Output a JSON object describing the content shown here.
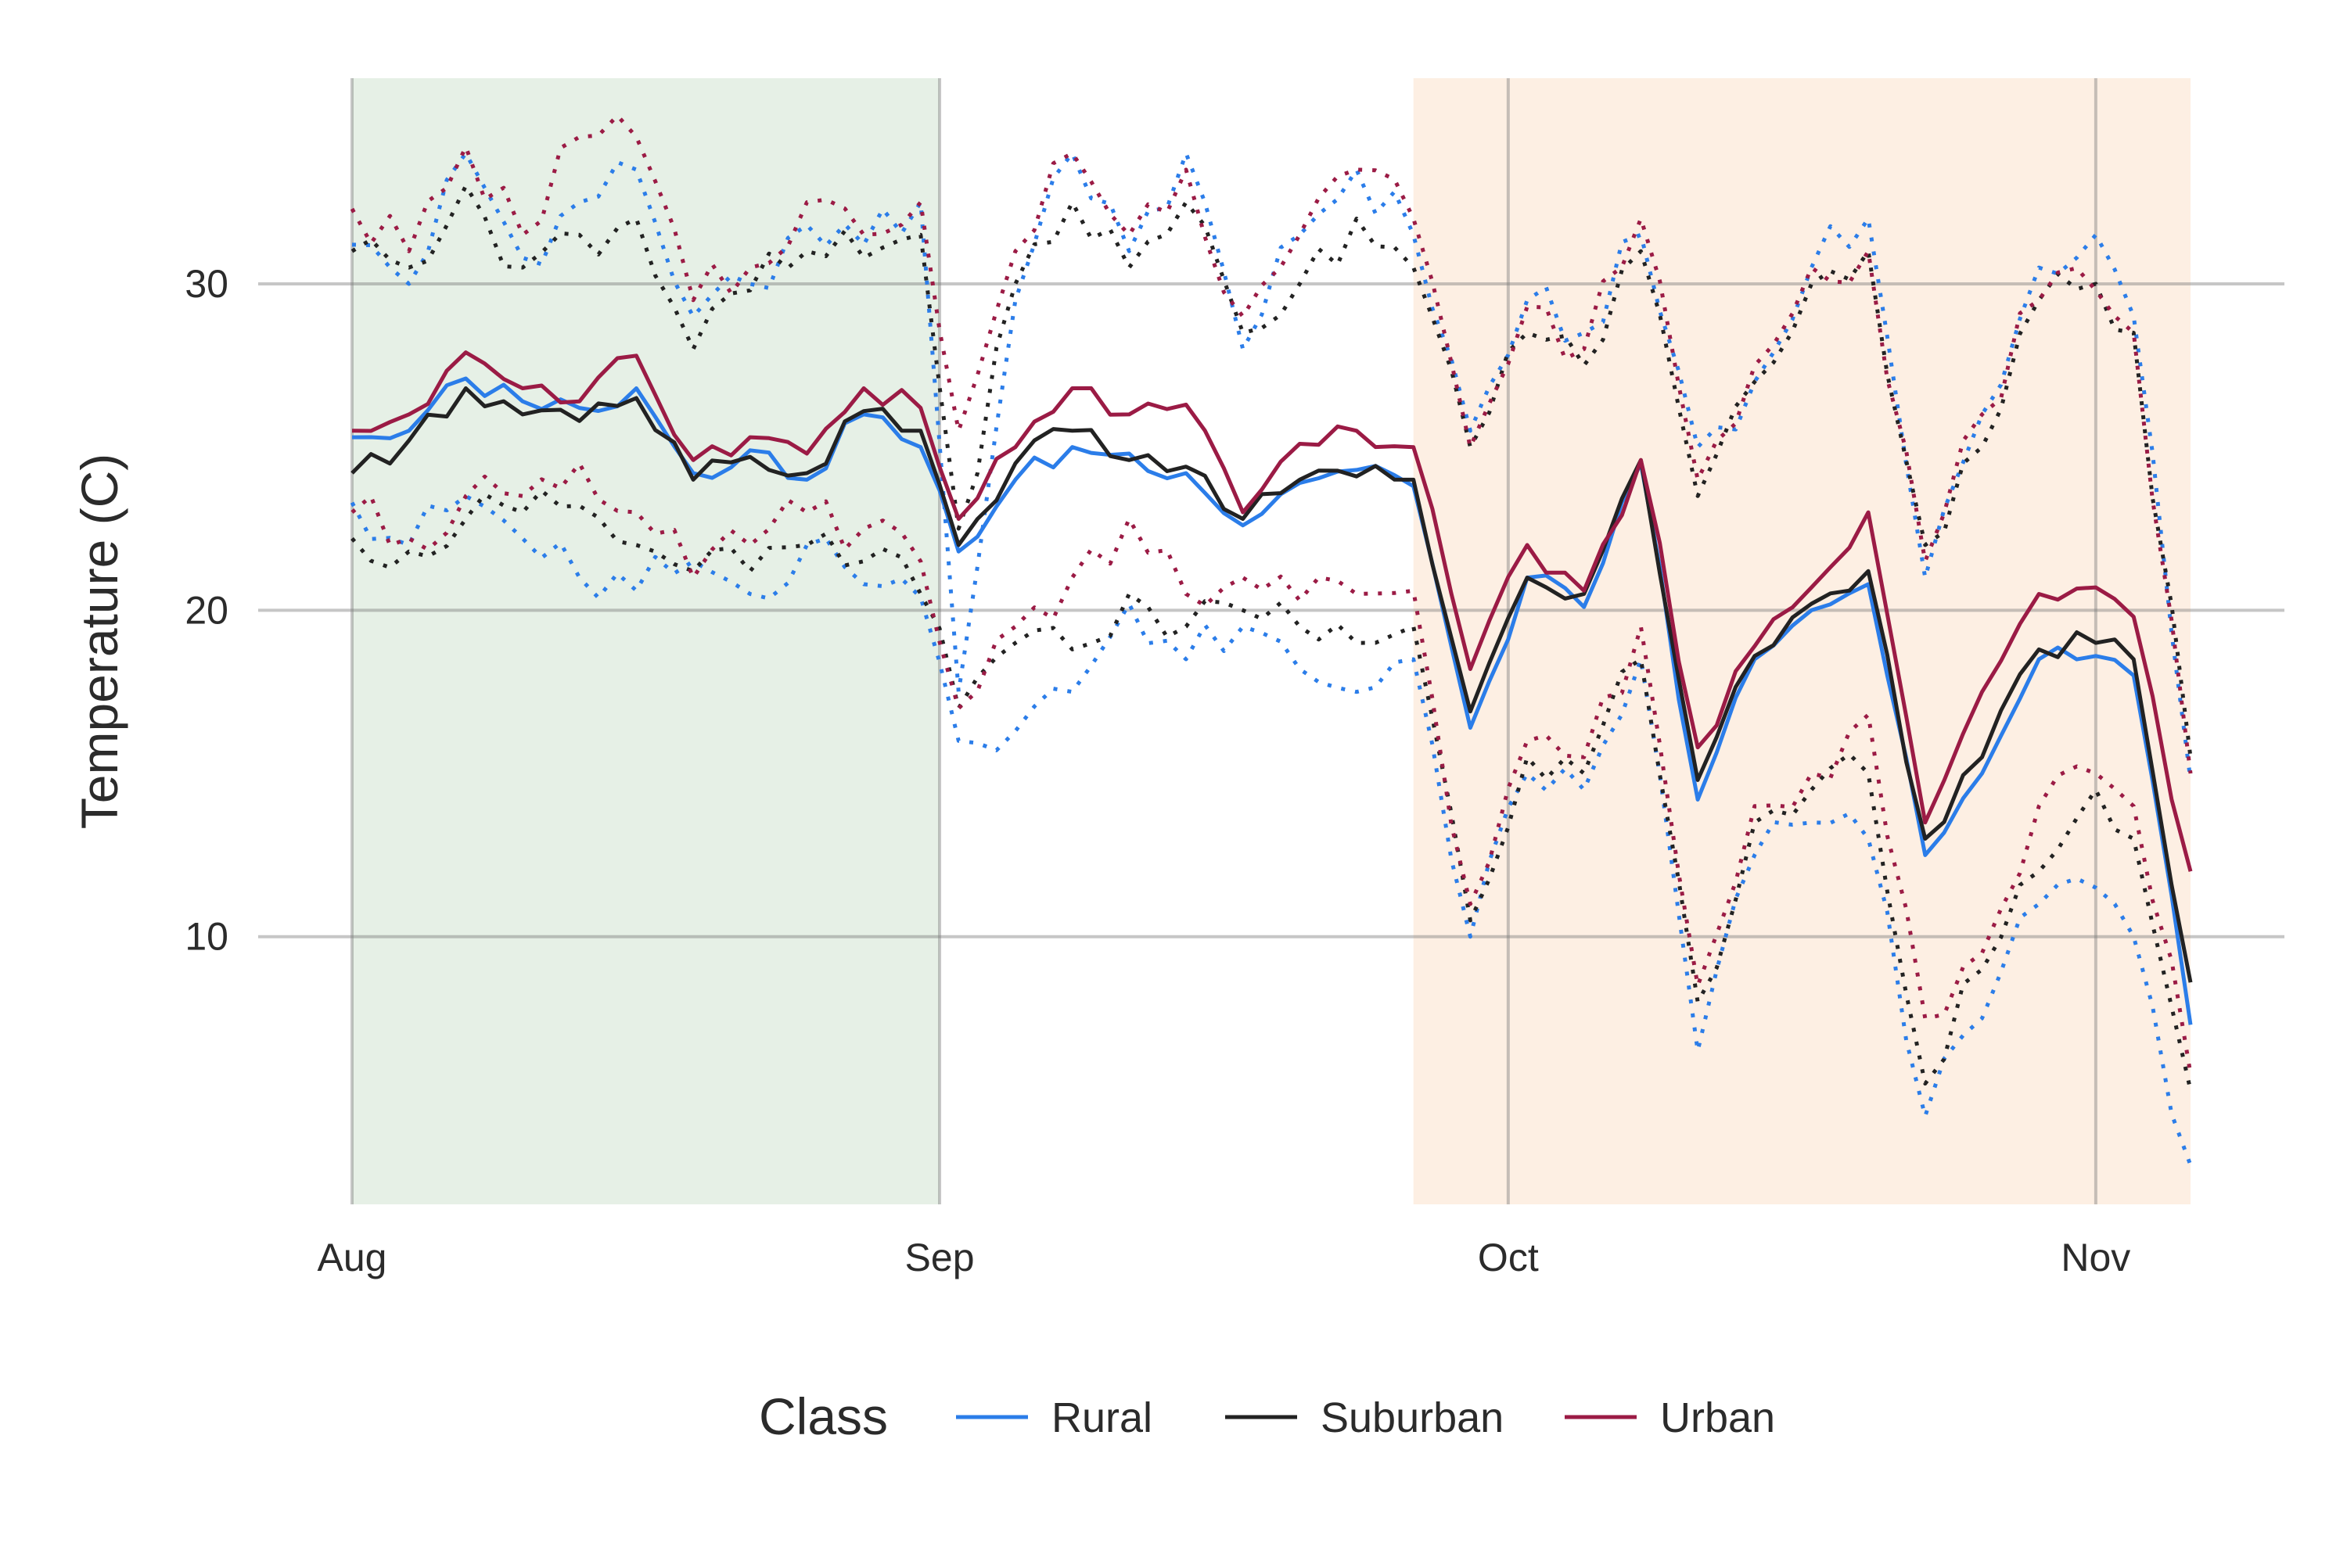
{
  "chart_data": {
    "type": "line",
    "title": "",
    "xlabel": "",
    "ylabel": "Temperature (C)",
    "x_tick_labels": [
      "Aug",
      "Sep",
      "Oct",
      "Nov"
    ],
    "x_tick_dates": [
      "2021-08-01",
      "2021-09-01",
      "2021-10-01",
      "2021-11-01"
    ],
    "y_ticks": [
      10,
      20,
      30
    ],
    "ylim": [
      1.8,
      36.3
    ],
    "xlim": [
      "2021-08-01",
      "2021-11-06"
    ],
    "grid": true,
    "legend": {
      "title": "Class",
      "position": "bottom",
      "entries": [
        "Rural",
        "Suburban",
        "Urban"
      ]
    },
    "shaded_regions": [
      {
        "start": "2021-08-01",
        "end": "2021-09-01",
        "color": "#e6f0e6"
      },
      {
        "start": "2021-09-26",
        "end": "2021-11-06",
        "color": "#fdefe3"
      }
    ],
    "line_styles": {
      "mean": "solid",
      "max": "dotted",
      "min": "dotted"
    },
    "series": [
      {
        "name": "Rural",
        "color": "#2b7de9",
        "anchor_dates": [
          "2021-08-01",
          "2021-08-04",
          "2021-08-07",
          "2021-08-10",
          "2021-08-13",
          "2021-08-16",
          "2021-08-19",
          "2021-08-22",
          "2021-08-25",
          "2021-08-28",
          "2021-08-31",
          "2021-09-02",
          "2021-09-05",
          "2021-09-08",
          "2021-09-11",
          "2021-09-14",
          "2021-09-17",
          "2021-09-20",
          "2021-09-23",
          "2021-09-26",
          "2021-09-29",
          "2021-10-02",
          "2021-10-05",
          "2021-10-08",
          "2021-10-11",
          "2021-10-14",
          "2021-10-17",
          "2021-10-20",
          "2021-10-23",
          "2021-10-26",
          "2021-10-29",
          "2021-11-01",
          "2021-11-03",
          "2021-11-06"
        ],
        "mean": [
          25.3,
          25.5,
          27.1,
          26.4,
          26.2,
          26.8,
          24.2,
          24.9,
          24.0,
          26.0,
          25.0,
          21.8,
          24.0,
          25.0,
          24.8,
          24.2,
          22.6,
          23.9,
          24.3,
          23.8,
          16.4,
          21.0,
          20.1,
          24.5,
          14.2,
          18.5,
          20.0,
          20.8,
          12.5,
          15.0,
          18.5,
          18.6,
          18.0,
          7.3
        ],
        "max": [
          31.2,
          30.0,
          34.0,
          30.8,
          32.5,
          33.5,
          29.0,
          30.0,
          31.8,
          31.2,
          32.5,
          17.5,
          29.5,
          34.0,
          31.0,
          34.0,
          28.0,
          31.5,
          33.5,
          31.5,
          25.5,
          29.5,
          28.5,
          31.5,
          25.0,
          27.0,
          30.5,
          32.0,
          21.0,
          26.0,
          30.5,
          31.5,
          29.0,
          14.8
        ],
        "min": [
          23.3,
          22.0,
          23.5,
          22.2,
          21.0,
          20.6,
          21.5,
          20.5,
          22.0,
          20.8,
          20.4,
          16.0,
          16.3,
          17.5,
          20.2,
          18.5,
          19.5,
          18.2,
          17.5,
          18.5,
          10.0,
          15.0,
          14.5,
          18.5,
          6.5,
          12.5,
          13.5,
          13.0,
          4.5,
          7.5,
          11.0,
          11.5,
          10.0,
          3.0
        ]
      },
      {
        "name": "Suburban",
        "color": "#222222",
        "anchor_dates": [
          "2021-08-01",
          "2021-08-04",
          "2021-08-07",
          "2021-08-10",
          "2021-08-13",
          "2021-08-16",
          "2021-08-19",
          "2021-08-22",
          "2021-08-25",
          "2021-08-28",
          "2021-08-31",
          "2021-09-02",
          "2021-09-05",
          "2021-09-08",
          "2021-09-11",
          "2021-09-14",
          "2021-09-17",
          "2021-09-20",
          "2021-09-23",
          "2021-09-26",
          "2021-09-29",
          "2021-10-02",
          "2021-10-05",
          "2021-10-08",
          "2021-10-11",
          "2021-10-14",
          "2021-10-17",
          "2021-10-20",
          "2021-10-23",
          "2021-10-26",
          "2021-10-29",
          "2021-11-01",
          "2021-11-03",
          "2021-11-06"
        ],
        "mean": [
          24.2,
          25.2,
          26.8,
          26.0,
          25.8,
          26.5,
          24.0,
          24.7,
          24.2,
          26.1,
          25.5,
          22.0,
          24.5,
          25.5,
          24.6,
          24.4,
          22.8,
          24.0,
          24.1,
          24.0,
          16.9,
          21.0,
          20.5,
          24.6,
          14.8,
          18.6,
          20.2,
          21.2,
          13.0,
          15.5,
          18.8,
          19.0,
          18.5,
          8.6
        ],
        "max": [
          31.0,
          30.5,
          33.0,
          30.5,
          31.5,
          32.0,
          28.0,
          29.8,
          31.0,
          30.8,
          31.5,
          22.5,
          30.0,
          32.5,
          30.5,
          32.5,
          28.5,
          30.0,
          32.0,
          30.5,
          25.0,
          28.5,
          27.5,
          31.0,
          23.5,
          27.0,
          30.0,
          31.0,
          22.0,
          25.0,
          29.5,
          30.0,
          28.5,
          15.5
        ],
        "min": [
          22.2,
          21.8,
          22.8,
          23.0,
          23.2,
          22.0,
          21.2,
          21.2,
          22.0,
          21.5,
          20.5,
          17.0,
          19.0,
          18.8,
          20.5,
          19.5,
          20.0,
          19.5,
          19.0,
          19.5,
          10.5,
          15.5,
          15.0,
          18.5,
          8.0,
          13.5,
          14.5,
          15.0,
          5.5,
          9.0,
          12.0,
          14.5,
          13.0,
          5.3
        ]
      },
      {
        "name": "Urban",
        "color": "#9b1b45",
        "anchor_dates": [
          "2021-08-01",
          "2021-08-04",
          "2021-08-07",
          "2021-08-10",
          "2021-08-13",
          "2021-08-16",
          "2021-08-19",
          "2021-08-22",
          "2021-08-25",
          "2021-08-28",
          "2021-08-31",
          "2021-09-02",
          "2021-09-05",
          "2021-09-08",
          "2021-09-11",
          "2021-09-14",
          "2021-09-17",
          "2021-09-20",
          "2021-09-23",
          "2021-09-26",
          "2021-09-29",
          "2021-10-02",
          "2021-10-05",
          "2021-10-08",
          "2021-10-11",
          "2021-10-14",
          "2021-10-17",
          "2021-10-20",
          "2021-10-23",
          "2021-10-26",
          "2021-10-29",
          "2021-11-01",
          "2021-11-03",
          "2021-11-06"
        ],
        "mean": [
          25.5,
          26.0,
          27.9,
          26.8,
          26.4,
          27.8,
          24.6,
          25.3,
          24.8,
          26.8,
          26.2,
          22.8,
          25.0,
          26.8,
          26.0,
          26.3,
          23.0,
          25.1,
          25.5,
          25.0,
          18.2,
          22.0,
          20.6,
          24.6,
          15.8,
          18.9,
          20.7,
          23.0,
          13.5,
          17.5,
          20.5,
          20.7,
          19.8,
          12.0
        ],
        "max": [
          32.3,
          31.0,
          34.2,
          31.5,
          34.5,
          34.5,
          29.5,
          30.5,
          32.5,
          31.5,
          32.5,
          25.5,
          31.0,
          34.0,
          31.5,
          33.5,
          29.0,
          31.5,
          33.5,
          32.0,
          25.0,
          29.3,
          28.0,
          32.0,
          24.0,
          27.5,
          30.5,
          31.0,
          21.5,
          26.0,
          29.5,
          29.8,
          28.5,
          15.0
        ],
        "min": [
          23.0,
          22.2,
          23.5,
          23.5,
          24.5,
          23.0,
          21.0,
          22.0,
          23.0,
          22.5,
          21.5,
          17.0,
          19.5,
          21.0,
          22.8,
          20.5,
          21.0,
          20.3,
          20.5,
          20.6,
          11.0,
          16.0,
          15.5,
          19.5,
          8.5,
          14.0,
          15.0,
          16.8,
          7.5,
          9.5,
          14.0,
          15.0,
          14.0,
          5.8
        ]
      }
    ]
  }
}
